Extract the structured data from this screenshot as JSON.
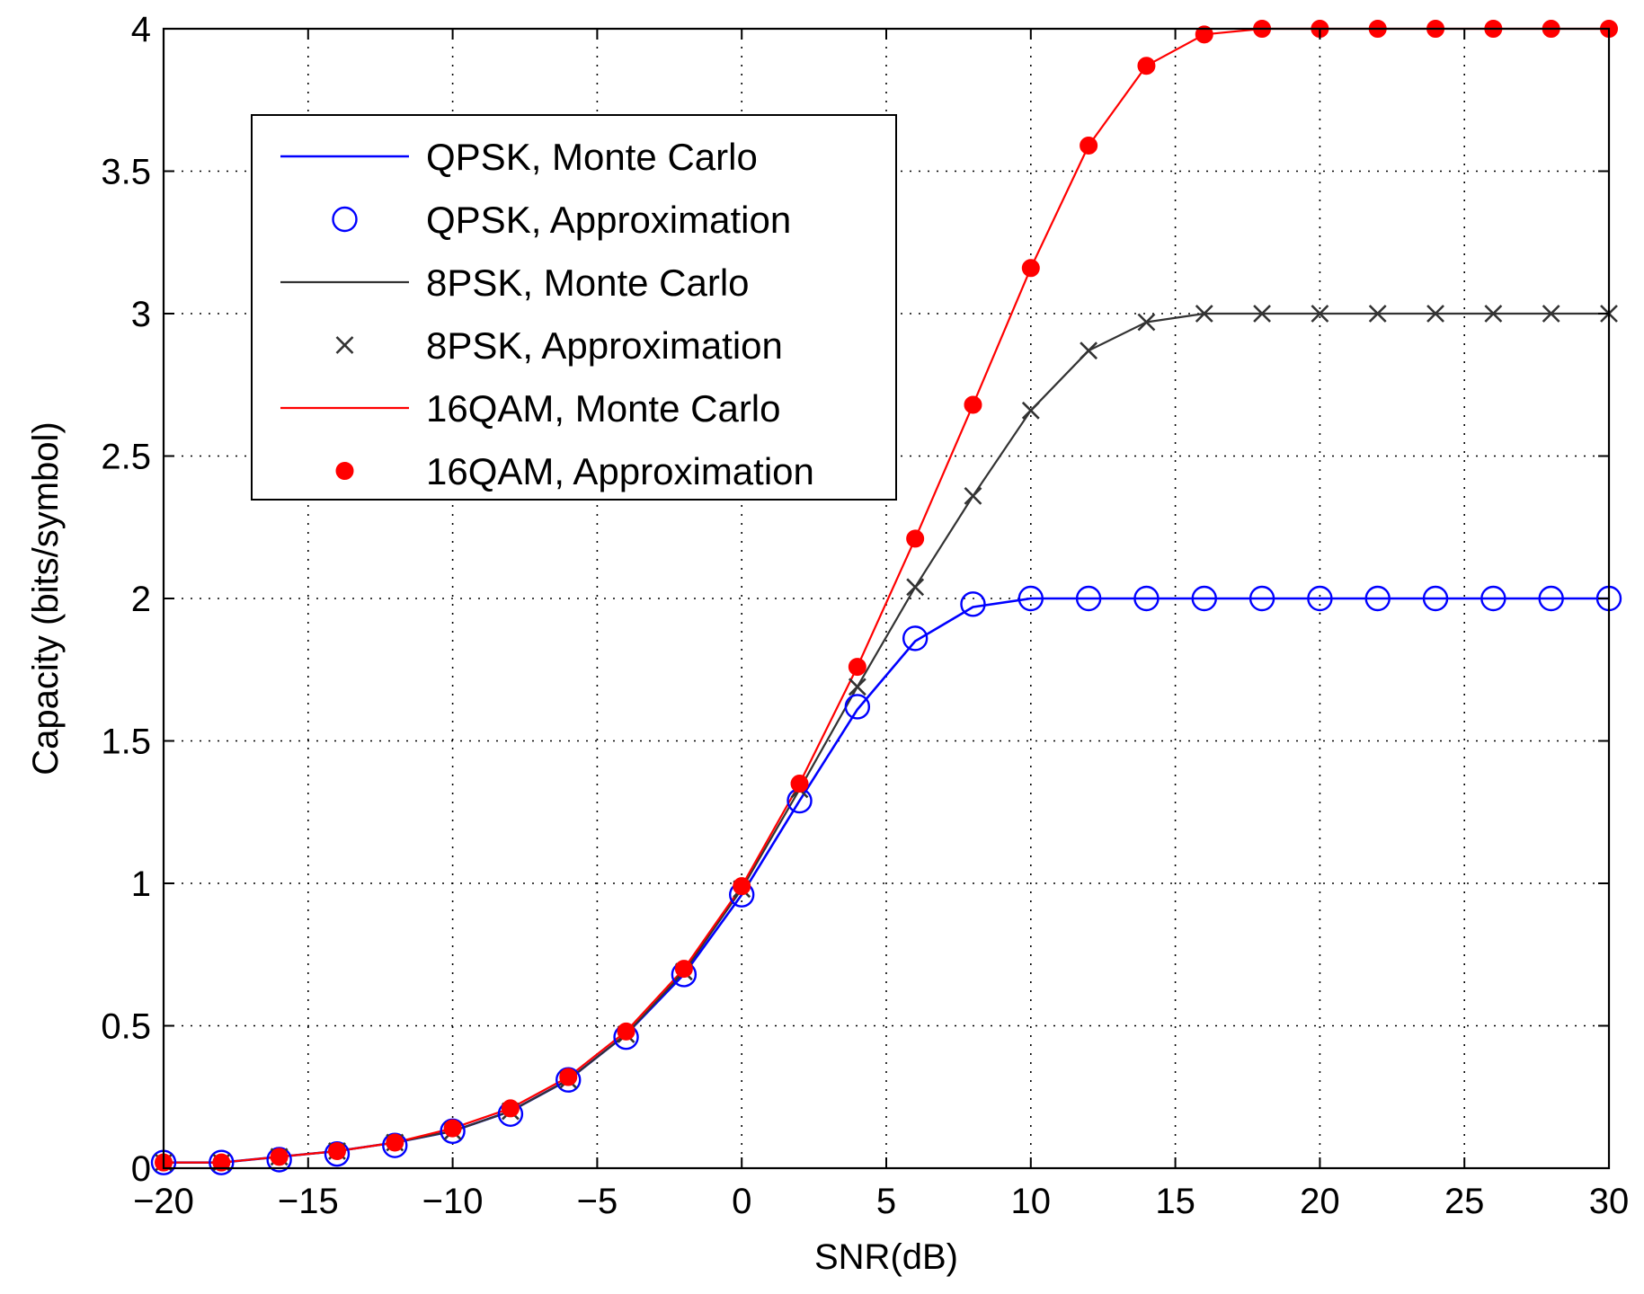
{
  "chart_data": {
    "type": "line",
    "title": "",
    "xlabel": "SNR(dB)",
    "ylabel": "Capacity (bits/symbol)",
    "xlim": [
      -20,
      30
    ],
    "ylim": [
      0,
      4
    ],
    "x_ticks": [
      -20,
      -15,
      -10,
      -5,
      0,
      5,
      10,
      15,
      20,
      25,
      30
    ],
    "x_tick_labels": [
      "−20",
      "−15",
      "−10",
      "−5",
      "0",
      "5",
      "10",
      "15",
      "20",
      "25",
      "30"
    ],
    "y_ticks": [
      0,
      0.5,
      1,
      1.5,
      2,
      2.5,
      3,
      3.5,
      4
    ],
    "y_tick_labels": [
      "0",
      "0.5",
      "1",
      "1.5",
      "2",
      "2.5",
      "3",
      "3.5",
      "4"
    ],
    "grid": true,
    "legend_position": "top-left",
    "x": [
      -20,
      -18,
      -16,
      -14,
      -12,
      -10,
      -8,
      -6,
      -4,
      -2,
      0,
      2,
      4,
      6,
      8,
      10,
      12,
      14,
      16,
      18,
      20,
      22,
      24,
      26,
      28,
      30
    ],
    "series": [
      {
        "name": "QPSK, Monte Carlo",
        "style": "line",
        "color": "#0000ff",
        "values": [
          0.02,
          0.02,
          0.04,
          0.06,
          0.09,
          0.13,
          0.2,
          0.31,
          0.47,
          0.68,
          0.96,
          1.29,
          1.61,
          1.85,
          1.97,
          2.0,
          2.0,
          2.0,
          2.0,
          2.0,
          2.0,
          2.0,
          2.0,
          2.0,
          2.0,
          2.0
        ]
      },
      {
        "name": "QPSK, Approximation",
        "style": "marker-circle-open",
        "color": "#0000ff",
        "values": [
          0.02,
          0.02,
          0.03,
          0.05,
          0.08,
          0.13,
          0.19,
          0.31,
          0.46,
          0.68,
          0.96,
          1.29,
          1.62,
          1.86,
          1.98,
          2.0,
          2.0,
          2.0,
          2.0,
          2.0,
          2.0,
          2.0,
          2.0,
          2.0,
          2.0,
          2.0
        ]
      },
      {
        "name": "8PSK, Monte Carlo",
        "style": "line",
        "color": "#333333",
        "values": [
          0.02,
          0.02,
          0.04,
          0.06,
          0.09,
          0.13,
          0.2,
          0.31,
          0.47,
          0.69,
          0.98,
          1.33,
          1.69,
          2.04,
          2.36,
          2.66,
          2.87,
          2.97,
          3.0,
          3.0,
          3.0,
          3.0,
          3.0,
          3.0,
          3.0,
          3.0
        ]
      },
      {
        "name": "8PSK, Approximation",
        "style": "marker-x",
        "color": "#333333",
        "values": [
          0.02,
          0.02,
          0.04,
          0.06,
          0.09,
          0.13,
          0.2,
          0.31,
          0.47,
          0.69,
          0.98,
          1.33,
          1.69,
          2.04,
          2.36,
          2.66,
          2.87,
          2.97,
          3.0,
          3.0,
          3.0,
          3.0,
          3.0,
          3.0,
          3.0,
          3.0
        ]
      },
      {
        "name": "16QAM, Monte Carlo",
        "style": "line",
        "color": "#ff0000",
        "values": [
          0.02,
          0.02,
          0.04,
          0.06,
          0.09,
          0.14,
          0.21,
          0.32,
          0.48,
          0.7,
          0.99,
          1.35,
          1.76,
          2.21,
          2.68,
          3.16,
          3.59,
          3.87,
          3.98,
          4.0,
          4.0,
          4.0,
          4.0,
          4.0,
          4.0,
          4.0
        ]
      },
      {
        "name": "16QAM, Approximation",
        "style": "marker-dot-filled",
        "color": "#ff0000",
        "values": [
          0.02,
          0.02,
          0.04,
          0.06,
          0.09,
          0.14,
          0.21,
          0.32,
          0.48,
          0.7,
          0.99,
          1.35,
          1.76,
          2.21,
          2.68,
          3.16,
          3.59,
          3.87,
          3.98,
          4.0,
          4.0,
          4.0,
          4.0,
          4.0,
          4.0,
          4.0
        ]
      }
    ]
  }
}
